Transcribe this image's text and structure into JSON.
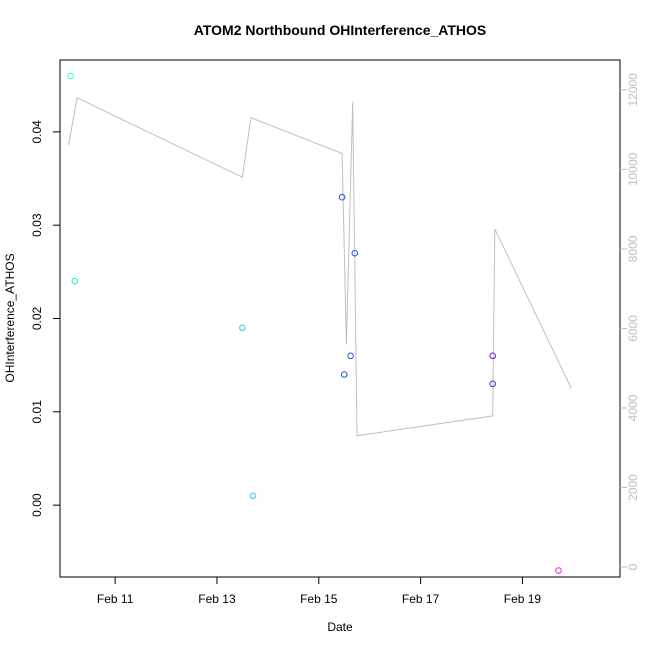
{
  "chart_data": {
    "type": "scatter",
    "title": "ATOM2 Northbound OHInterference_ATHOS",
    "xlabel": "Date",
    "ylabel": "OHInterference_ATHOS",
    "grid": false,
    "x_axis": {
      "type": "date",
      "range": [
        "2024-02-09T22:00",
        "2024-02-20T22:00"
      ],
      "ticks": [
        {
          "value": "2024-02-11",
          "label": "Feb 11"
        },
        {
          "value": "2024-02-13",
          "label": "Feb 13"
        },
        {
          "value": "2024-02-15",
          "label": "Feb 15"
        },
        {
          "value": "2024-02-17",
          "label": "Feb 17"
        },
        {
          "value": "2024-02-19",
          "label": "Feb 19"
        }
      ]
    },
    "y_axis_left": {
      "range": [
        -0.0077,
        0.0477
      ],
      "ticks": [
        {
          "value": 0.0,
          "label": "0.00"
        },
        {
          "value": 0.01,
          "label": "0.01"
        },
        {
          "value": 0.02,
          "label": "0.02"
        },
        {
          "value": 0.03,
          "label": "0.03"
        },
        {
          "value": 0.04,
          "label": "0.04"
        }
      ]
    },
    "y_axis_right": {
      "range": [
        -250,
        12750
      ],
      "color": "#bfbfbf",
      "ticks": [
        {
          "value": 0,
          "label": "0"
        },
        {
          "value": 2000,
          "label": "2000"
        },
        {
          "value": 4000,
          "label": "4000"
        },
        {
          "value": 6000,
          "label": "6000"
        },
        {
          "value": 8000,
          "label": "8000"
        },
        {
          "value": 10000,
          "label": "10000"
        },
        {
          "value": 12000,
          "label": "12000"
        }
      ]
    },
    "series": [
      {
        "axis": "left",
        "marker": "circle-open",
        "points": [
          {
            "x": "2024-02-10T03:00",
            "y": 0.046,
            "color": "#33ffbb"
          },
          {
            "x": "2024-02-10T05:00",
            "y": 0.024,
            "color": "#22eebb"
          },
          {
            "x": "2024-02-13T12:00",
            "y": 0.019,
            "color": "#22ccee"
          },
          {
            "x": "2024-02-13T17:00",
            "y": 0.001,
            "color": "#22ccee"
          },
          {
            "x": "2024-02-15T11:00",
            "y": 0.033,
            "color": "#2255dd"
          },
          {
            "x": "2024-02-15T12:00",
            "y": 0.014,
            "color": "#2255dd"
          },
          {
            "x": "2024-02-15T15:00",
            "y": 0.016,
            "color": "#2255dd"
          },
          {
            "x": "2024-02-15T17:00",
            "y": 0.027,
            "color": "#2255dd"
          },
          {
            "x": "2024-02-18T10:00",
            "y": 0.016,
            "color": "#6622cc"
          },
          {
            "x": "2024-02-18T10:00",
            "y": 0.013,
            "color": "#6622cc"
          },
          {
            "x": "2024-02-19T17:00",
            "y": -0.007,
            "color": "#ee22ee"
          }
        ]
      },
      {
        "axis": "right",
        "type": "line",
        "color": "#bfbfbf",
        "points": [
          {
            "x": "2024-02-10T02:00",
            "y": 10600
          },
          {
            "x": "2024-02-10T06:00",
            "y": 11800
          },
          {
            "x": "2024-02-13T12:00",
            "y": 9800
          },
          {
            "x": "2024-02-13T16:00",
            "y": 11300
          },
          {
            "x": "2024-02-15T11:00",
            "y": 10400
          },
          {
            "x": "2024-02-15T13:00",
            "y": 5600
          },
          {
            "x": "2024-02-15T16:00",
            "y": 11700
          },
          {
            "x": "2024-02-15T18:00",
            "y": 3300
          },
          {
            "x": "2024-02-18T10:00",
            "y": 3800
          },
          {
            "x": "2024-02-18T11:00",
            "y": 8500
          },
          {
            "x": "2024-02-19T23:00",
            "y": 4500
          }
        ]
      }
    ]
  }
}
